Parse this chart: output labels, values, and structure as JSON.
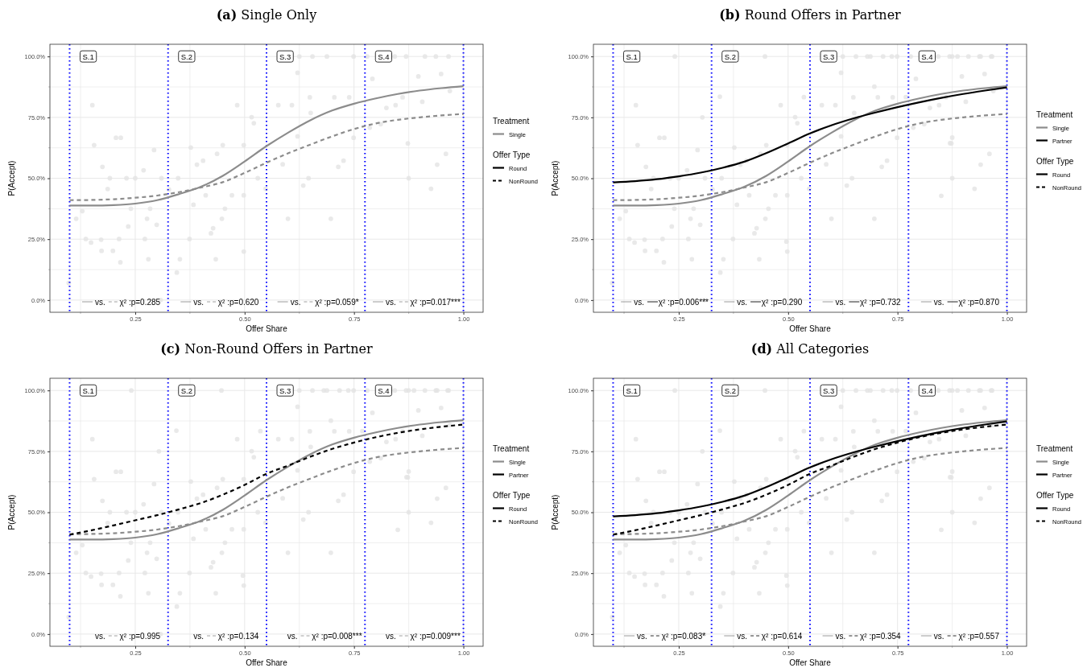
{
  "chart_data": [
    {
      "type": "line",
      "title": "(a) Single Only",
      "xlabel": "Offer Share",
      "ylabel": "P(Accept)",
      "legend_title": "Treatment",
      "legend": "right",
      "grid": true,
      "xlim": [
        0.055,
        1.045
      ],
      "ylim": [
        -5,
        105
      ],
      "xticks": [
        {
          "value": 0.125,
          "label": null
        },
        {
          "value": 0.25,
          "label": "0.25"
        },
        {
          "value": 0.375,
          "label": null
        },
        {
          "value": 0.5,
          "label": "0.50"
        },
        {
          "value": 0.625,
          "label": null
        },
        {
          "value": 0.75,
          "label": "0.75"
        },
        {
          "value": 0.875,
          "label": null
        },
        {
          "value": 1,
          "label": "1.00"
        }
      ],
      "yticks": [
        {
          "value": 0,
          "label": "0.0%"
        },
        {
          "value": 12.5,
          "label": null
        },
        {
          "value": 25,
          "label": "25.0%"
        },
        {
          "value": 37.5,
          "label": null
        },
        {
          "value": 50,
          "label": "50.0%"
        },
        {
          "value": 62.5,
          "label": null
        },
        {
          "value": 75,
          "label": "75.0%"
        },
        {
          "value": 87.5,
          "label": null
        },
        {
          "value": 100,
          "label": "100.0%"
        }
      ],
      "x": [
        0.1,
        0.15,
        0.2,
        0.25,
        0.3,
        0.35,
        0.4,
        0.45,
        0.5,
        0.55,
        0.6,
        0.65,
        0.7,
        0.75,
        0.8,
        0.85,
        0.9,
        0.95,
        1.0
      ],
      "series": [
        {
          "type": "scatter",
          "marker": "circle",
          "color": "#e3e3e3",
          "x": [
            0.152,
            0.156,
            0.098,
            0.115,
            0.129,
            0.137,
            0.149,
            0.172,
            0.173,
            0.175,
            0.187,
            0.192,
            0.199,
            0.206,
            0.217,
            0.213,
            0.216,
            0.23,
            0.234,
            0.24,
            0.25,
            0.269,
            0.272,
            0.277,
            0.28,
            0.284,
            0.293,
            0.299,
            0.31,
            0.308,
            0.327,
            0.345,
            0.348,
            0.352,
            0.374,
            0.377,
            0.383,
            0.391,
            0.405,
            0.411,
            0.423,
            0.428,
            0.434,
            0.437,
            0.448,
            0.45,
            0.455,
            0.471,
            0.483,
            0.498,
            0.498,
            0.498,
            0.516,
            0.521,
            0.53,
            0.548,
            0.577,
            0.587,
            0.599,
            0.608,
            0.621,
            0.621,
            0.625,
            0.634,
            0.646,
            0.649,
            0.651,
            0.655,
            0.688,
            0.697,
            0.705,
            0.714,
            0.726,
            0.739,
            0.749,
            0.749,
            0.78,
            0.786,
            0.792,
            0.811,
            0.824,
            0.843,
            0.845,
            0.861,
            0.869,
            0.873,
            0.875,
            0.897,
            0.906,
            0.912,
            0.926,
            0.937,
            0.94,
            0.949,
            0.96,
            0.966,
            0.969
          ],
          "values": [
            80.0,
            63.6,
            7.0,
            33.4,
            36.5,
            25.1,
            23.6,
            24.8,
            20.2,
            54.7,
            45.6,
            50,
            20.2,
            66.6,
            66.6,
            25.1,
            15.5,
            50,
            30.2,
            37.5,
            50,
            53.3,
            25.1,
            33.4,
            16.8,
            37.5,
            61.6,
            30.9,
            50,
            0,
            45.4,
            11.3,
            50,
            16.8,
            25.1,
            62.6,
            39.1,
            55.6,
            57.2,
            43.0,
            27.4,
            29.5,
            16.8,
            60.0,
            33.4,
            63.6,
            37.5,
            43.0,
            80.0,
            63.6,
            43.0,
            19.9,
            75.1,
            72.6,
            50,
            45.7,
            80,
            55.7,
            33.4,
            80,
            67.2,
            93.3,
            100,
            47.0,
            50,
            83.2,
            76.8,
            100,
            100,
            33.4,
            83.2,
            54.7,
            57.2,
            83.2,
            66.6,
            100,
            100,
            70.8,
            90.8,
            72.2,
            78.9,
            100,
            80,
            83.2,
            100,
            64.3,
            50,
            91.8,
            81.4,
            100,
            45.7,
            100,
            55.6,
            92.8,
            60.0,
            100,
            85.8
          ]
        },
        {
          "name": "Single",
          "color": "#8c8c8c",
          "line_style": "solid",
          "values": [
            38.8,
            38.8,
            39.0,
            39.6,
            41.0,
            43.5,
            46.5,
            51.0,
            56.9,
            63.2,
            68.8,
            73.8,
            77.8,
            80.6,
            82.8,
            84.6,
            86.0,
            87.0,
            87.8
          ]
        },
        {
          "color": "#8c8c8c",
          "line_style": "dashed",
          "values": [
            41.0,
            41.1,
            41.4,
            42.0,
            42.9,
            44.3,
            46.2,
            48.4,
            52.2,
            56.4,
            60.3,
            63.8,
            67.2,
            70.2,
            72.5,
            74.0,
            75.0,
            75.8,
            76.4
          ]
        }
      ],
      "ref_lines": [
        {
          "axis": "x",
          "value": 0.1,
          "label": "S.1",
          "color": "#0000ff",
          "line_style": "dotted"
        },
        {
          "axis": "x",
          "value": 0.325,
          "label": "S.2",
          "color": "#0000ff",
          "line_style": "dotted"
        },
        {
          "axis": "x",
          "value": 0.55,
          "label": "S.3",
          "color": "#0000ff",
          "line_style": "dotted"
        },
        {
          "axis": "x",
          "value": 0.775,
          "label": "S.4",
          "color": "#0000ff",
          "line_style": "dotted"
        },
        {
          "axis": "x",
          "value": 1.0,
          "color": "#0000ff",
          "line_style": "dotted"
        }
      ],
      "annotations": [
        "vs. χ² :p=0.285",
        "vs. χ² :p=0.620",
        "vs. χ² :p=0.059*",
        "vs. χ² :p=0.017***",
        "Offer Type",
        "Round",
        "NonRound"
      ]
    },
    {
      "type": "line",
      "title": "(b) Round Offers in Partner",
      "xlabel": "Offer Share",
      "ylabel": "P(Accept)",
      "legend_title": "Treatment",
      "legend": "right",
      "grid": true,
      "xlim": [
        0.055,
        1.045
      ],
      "ylim": [
        -5,
        105
      ],
      "xticks": [
        {
          "value": 0.125,
          "label": null
        },
        {
          "value": 0.25,
          "label": "0.25"
        },
        {
          "value": 0.375,
          "label": null
        },
        {
          "value": 0.5,
          "label": "0.50"
        },
        {
          "value": 0.625,
          "label": null
        },
        {
          "value": 0.75,
          "label": "0.75"
        },
        {
          "value": 0.875,
          "label": null
        },
        {
          "value": 1,
          "label": "1.00"
        }
      ],
      "yticks": [
        {
          "value": 0,
          "label": "0.0%"
        },
        {
          "value": 12.5,
          "label": null
        },
        {
          "value": 25,
          "label": "25.0%"
        },
        {
          "value": 37.5,
          "label": null
        },
        {
          "value": 50,
          "label": "50.0%"
        },
        {
          "value": 62.5,
          "label": null
        },
        {
          "value": 75,
          "label": "75.0%"
        },
        {
          "value": 87.5,
          "label": null
        },
        {
          "value": 100,
          "label": "100.0%"
        }
      ],
      "x": [
        0.1,
        0.15,
        0.2,
        0.25,
        0.3,
        0.35,
        0.4,
        0.45,
        0.5,
        0.55,
        0.6,
        0.65,
        0.7,
        0.75,
        0.8,
        0.85,
        0.9,
        0.95,
        1.0
      ],
      "series": [
        {
          "type": "scatter",
          "marker": "circle",
          "color": "#e3e3e3",
          "x": [
            0.152,
            0.156,
            0.098,
            0.115,
            0.129,
            0.137,
            0.149,
            0.172,
            0.173,
            0.175,
            0.187,
            0.192,
            0.199,
            0.206,
            0.217,
            0.213,
            0.216,
            0.23,
            0.234,
            0.24,
            0.25,
            0.269,
            0.272,
            0.277,
            0.28,
            0.284,
            0.293,
            0.299,
            0.31,
            0.308,
            0.327,
            0.345,
            0.348,
            0.352,
            0.374,
            0.377,
            0.383,
            0.391,
            0.405,
            0.411,
            0.423,
            0.428,
            0.434,
            0.437,
            0.448,
            0.45,
            0.455,
            0.471,
            0.483,
            0.498,
            0.498,
            0.498,
            0.516,
            0.521,
            0.53,
            0.548,
            0.577,
            0.587,
            0.599,
            0.608,
            0.621,
            0.621,
            0.625,
            0.634,
            0.646,
            0.649,
            0.651,
            0.655,
            0.688,
            0.697,
            0.705,
            0.714,
            0.726,
            0.739,
            0.749,
            0.749,
            0.78,
            0.786,
            0.792,
            0.811,
            0.824,
            0.843,
            0.845,
            0.861,
            0.869,
            0.873,
            0.875,
            0.897,
            0.906,
            0.912,
            0.926,
            0.937,
            0.94,
            0.949,
            0.96,
            0.966,
            0.969,
            0.241,
            0.447,
            0.344,
            0.304,
            0.536,
            0.875,
            0.887,
            0.94,
            0.964,
            0.875,
            0.87,
            0.85,
            0.697,
            0.769,
            0.681,
            0.717,
            0.737,
            0.496
          ],
          "values": [
            80.0,
            63.6,
            7.0,
            33.4,
            36.5,
            25.1,
            23.6,
            24.8,
            20.2,
            54.7,
            45.6,
            50,
            20.2,
            66.6,
            66.6,
            25.1,
            15.5,
            50,
            30.2,
            37.5,
            50,
            53.3,
            25.1,
            33.4,
            16.8,
            37.5,
            61.6,
            30.9,
            50,
            0,
            45.4,
            11.3,
            50,
            16.8,
            25.1,
            62.6,
            39.1,
            55.6,
            57.2,
            43.0,
            27.4,
            29.5,
            16.8,
            60.0,
            33.4,
            63.6,
            37.5,
            43.0,
            80.0,
            63.6,
            43.0,
            19.9,
            75.1,
            72.6,
            50,
            45.7,
            80,
            55.7,
            33.4,
            80,
            67.2,
            93.3,
            100,
            47.0,
            50,
            83.2,
            76.8,
            100,
            100,
            33.4,
            83.2,
            54.7,
            57.2,
            83.2,
            66.6,
            100,
            100,
            70.8,
            90.8,
            72.2,
            78.9,
            100,
            80,
            83.2,
            100,
            64.3,
            50,
            91.8,
            81.4,
            100,
            45.7,
            100,
            55.6,
            92.8,
            60.0,
            100,
            85.8,
            100,
            100,
            83.5,
            75.0,
            83.3,
            100,
            100,
            100,
            100,
            66.7,
            64.4,
            42.8,
            87.6,
            83.3,
            100,
            100,
            100,
            24.0
          ]
        },
        {
          "name": "Single",
          "color": "#8c8c8c",
          "line_style": "solid",
          "values": [
            38.8,
            38.8,
            39.0,
            39.6,
            41.0,
            43.5,
            46.5,
            51.0,
            56.9,
            63.2,
            68.8,
            73.8,
            77.8,
            80.6,
            82.8,
            84.6,
            86.0,
            87.0,
            87.8
          ]
        },
        {
          "color": "#8c8c8c",
          "line_style": "dashed",
          "values": [
            41.0,
            41.1,
            41.4,
            42.0,
            42.9,
            44.3,
            46.2,
            48.4,
            52.2,
            56.4,
            60.3,
            63.8,
            67.2,
            70.2,
            72.5,
            74.0,
            75.0,
            75.8,
            76.4
          ]
        },
        {
          "name": "Partner",
          "color": "#000000",
          "line_style": "solid",
          "values": [
            48.3,
            48.8,
            49.6,
            50.8,
            52.3,
            54.3,
            56.8,
            60.3,
            64.3,
            68.4,
            71.8,
            74.6,
            77.0,
            79.2,
            81.2,
            83.0,
            84.6,
            86.0,
            87.3
          ]
        }
      ],
      "ref_lines": [
        {
          "axis": "x",
          "value": 0.1,
          "label": "S.1",
          "color": "#0000ff",
          "line_style": "dotted"
        },
        {
          "axis": "x",
          "value": 0.325,
          "label": "S.2",
          "color": "#0000ff",
          "line_style": "dotted"
        },
        {
          "axis": "x",
          "value": 0.55,
          "label": "S.3",
          "color": "#0000ff",
          "line_style": "dotted"
        },
        {
          "axis": "x",
          "value": 0.775,
          "label": "S.4",
          "color": "#0000ff",
          "line_style": "dotted"
        },
        {
          "axis": "x",
          "value": 1.0,
          "color": "#0000ff",
          "line_style": "dotted"
        }
      ],
      "annotations": [
        "vs. χ² :p=0.006***",
        "vs. χ² :p=0.290",
        "vs. χ² :p=0.732",
        "vs. χ² :p=0.870",
        "Offer Type",
        "Round",
        "NonRound"
      ]
    },
    {
      "type": "line",
      "title": "(c) Non-Round Offers in Partner",
      "xlabel": "Offer Share",
      "ylabel": "P(Accept)",
      "legend_title": "Treatment",
      "legend": "right",
      "grid": true,
      "xlim": [
        0.055,
        1.045
      ],
      "ylim": [
        -5,
        105
      ],
      "xticks": [
        {
          "value": 0.125,
          "label": null
        },
        {
          "value": 0.25,
          "label": "0.25"
        },
        {
          "value": 0.375,
          "label": null
        },
        {
          "value": 0.5,
          "label": "0.50"
        },
        {
          "value": 0.625,
          "label": null
        },
        {
          "value": 0.75,
          "label": "0.75"
        },
        {
          "value": 0.875,
          "label": null
        },
        {
          "value": 1,
          "label": "1.00"
        }
      ],
      "yticks": [
        {
          "value": 0,
          "label": "0.0%"
        },
        {
          "value": 12.5,
          "label": null
        },
        {
          "value": 25,
          "label": "25.0%"
        },
        {
          "value": 37.5,
          "label": null
        },
        {
          "value": 50,
          "label": "50.0%"
        },
        {
          "value": 62.5,
          "label": null
        },
        {
          "value": 75,
          "label": "75.0%"
        },
        {
          "value": 87.5,
          "label": null
        },
        {
          "value": 100,
          "label": "100.0%"
        }
      ],
      "x": [
        0.1,
        0.15,
        0.2,
        0.25,
        0.3,
        0.35,
        0.4,
        0.45,
        0.5,
        0.55,
        0.6,
        0.65,
        0.7,
        0.75,
        0.8,
        0.85,
        0.9,
        0.95,
        1.0
      ],
      "series": [
        {
          "type": "scatter",
          "marker": "circle",
          "color": "#e3e3e3",
          "x": [
            0.152,
            0.156,
            0.098,
            0.115,
            0.129,
            0.137,
            0.149,
            0.172,
            0.173,
            0.175,
            0.187,
            0.192,
            0.199,
            0.206,
            0.217,
            0.213,
            0.216,
            0.23,
            0.234,
            0.24,
            0.25,
            0.269,
            0.272,
            0.277,
            0.28,
            0.284,
            0.293,
            0.299,
            0.31,
            0.308,
            0.327,
            0.345,
            0.348,
            0.352,
            0.374,
            0.377,
            0.383,
            0.391,
            0.405,
            0.411,
            0.423,
            0.428,
            0.434,
            0.437,
            0.448,
            0.45,
            0.455,
            0.471,
            0.483,
            0.498,
            0.498,
            0.498,
            0.516,
            0.521,
            0.53,
            0.548,
            0.577,
            0.587,
            0.599,
            0.608,
            0.621,
            0.621,
            0.625,
            0.634,
            0.646,
            0.649,
            0.651,
            0.655,
            0.688,
            0.697,
            0.705,
            0.714,
            0.726,
            0.739,
            0.749,
            0.749,
            0.78,
            0.786,
            0.792,
            0.811,
            0.824,
            0.843,
            0.845,
            0.861,
            0.869,
            0.873,
            0.875,
            0.897,
            0.906,
            0.912,
            0.926,
            0.937,
            0.94,
            0.949,
            0.96,
            0.966,
            0.969,
            0.241,
            0.447,
            0.344,
            0.304,
            0.536,
            0.875,
            0.887,
            0.94,
            0.964,
            0.875,
            0.87,
            0.85,
            0.697,
            0.769,
            0.681,
            0.717,
            0.737,
            0.496
          ],
          "values": [
            80.0,
            63.6,
            7.0,
            33.4,
            36.5,
            25.1,
            23.6,
            24.8,
            20.2,
            54.7,
            45.6,
            50,
            20.2,
            66.6,
            66.6,
            25.1,
            15.5,
            50,
            30.2,
            37.5,
            50,
            53.3,
            25.1,
            33.4,
            16.8,
            37.5,
            61.6,
            30.9,
            50,
            0,
            45.4,
            11.3,
            50,
            16.8,
            25.1,
            62.6,
            39.1,
            55.6,
            57.2,
            43.0,
            27.4,
            29.5,
            16.8,
            60.0,
            33.4,
            63.6,
            37.5,
            43.0,
            80.0,
            63.6,
            43.0,
            19.9,
            75.1,
            72.6,
            50,
            45.7,
            80,
            55.7,
            33.4,
            80,
            67.2,
            93.3,
            100,
            47.0,
            50,
            83.2,
            76.8,
            100,
            100,
            33.4,
            83.2,
            54.7,
            57.2,
            83.2,
            66.6,
            100,
            100,
            70.8,
            90.8,
            72.2,
            78.9,
            100,
            80,
            83.2,
            100,
            64.3,
            50,
            91.8,
            81.4,
            100,
            45.7,
            100,
            55.6,
            92.8,
            60.0,
            100,
            85.8,
            100,
            100,
            83.5,
            75.0,
            83.3,
            100,
            100,
            100,
            100,
            66.7,
            64.4,
            42.8,
            87.6,
            83.3,
            100,
            100,
            100,
            24.0
          ]
        },
        {
          "name": "Single",
          "color": "#8c8c8c",
          "line_style": "solid",
          "values": [
            38.8,
            38.8,
            39.0,
            39.6,
            41.0,
            43.5,
            46.5,
            51.0,
            56.9,
            63.2,
            68.8,
            73.8,
            77.8,
            80.6,
            82.8,
            84.6,
            86.0,
            87.0,
            87.8
          ]
        },
        {
          "color": "#8c8c8c",
          "line_style": "dashed",
          "values": [
            41.0,
            41.1,
            41.4,
            42.0,
            42.9,
            44.3,
            46.2,
            48.4,
            52.2,
            56.4,
            60.3,
            63.8,
            67.2,
            70.2,
            72.5,
            74.0,
            75.0,
            75.8,
            76.4
          ]
        },
        {
          "name": "Partner",
          "color": "#000000",
          "line_style": "dashed",
          "values": [
            40.8,
            42.6,
            44.6,
            46.7,
            48.8,
            51.2,
            53.8,
            57.2,
            61.2,
            65.8,
            69.2,
            72.8,
            76.0,
            78.6,
            80.8,
            82.6,
            84.0,
            85.1,
            86.0
          ]
        }
      ],
      "ref_lines": [
        {
          "axis": "x",
          "value": 0.1,
          "label": "S.1",
          "color": "#0000ff",
          "line_style": "dotted"
        },
        {
          "axis": "x",
          "value": 0.325,
          "label": "S.2",
          "color": "#0000ff",
          "line_style": "dotted"
        },
        {
          "axis": "x",
          "value": 0.55,
          "label": "S.3",
          "color": "#0000ff",
          "line_style": "dotted"
        },
        {
          "axis": "x",
          "value": 0.775,
          "label": "S.4",
          "color": "#0000ff",
          "line_style": "dotted"
        },
        {
          "axis": "x",
          "value": 1.0,
          "color": "#0000ff",
          "line_style": "dotted"
        }
      ],
      "annotations": [
        "vs. χ² :p=0.995",
        "vs. χ² :p=0.134",
        "vs. χ² :p=0.008***",
        "vs. χ² :p=0.009***",
        "Offer Type",
        "Round",
        "NonRound"
      ]
    },
    {
      "type": "line",
      "title": "(d) All Categories",
      "xlabel": "Offer Share",
      "ylabel": "P(Accept)",
      "legend_title": "Treatment",
      "legend": "right",
      "grid": true,
      "xlim": [
        0.055,
        1.045
      ],
      "ylim": [
        -5,
        105
      ],
      "xticks": [
        {
          "value": 0.125,
          "label": null
        },
        {
          "value": 0.25,
          "label": "0.25"
        },
        {
          "value": 0.375,
          "label": null
        },
        {
          "value": 0.5,
          "label": "0.50"
        },
        {
          "value": 0.625,
          "label": null
        },
        {
          "value": 0.75,
          "label": "0.75"
        },
        {
          "value": 0.875,
          "label": null
        },
        {
          "value": 1,
          "label": "1.00"
        }
      ],
      "yticks": [
        {
          "value": 0,
          "label": "0.0%"
        },
        {
          "value": 12.5,
          "label": null
        },
        {
          "value": 25,
          "label": "25.0%"
        },
        {
          "value": 37.5,
          "label": null
        },
        {
          "value": 50,
          "label": "50.0%"
        },
        {
          "value": 62.5,
          "label": null
        },
        {
          "value": 75,
          "label": "75.0%"
        },
        {
          "value": 87.5,
          "label": null
        },
        {
          "value": 100,
          "label": "100.0%"
        }
      ],
      "x": [
        0.1,
        0.15,
        0.2,
        0.25,
        0.3,
        0.35,
        0.4,
        0.45,
        0.5,
        0.55,
        0.6,
        0.65,
        0.7,
        0.75,
        0.8,
        0.85,
        0.9,
        0.95,
        1.0
      ],
      "series": [
        {
          "type": "scatter",
          "marker": "circle",
          "color": "#e3e3e3",
          "x": [
            0.152,
            0.156,
            0.098,
            0.115,
            0.129,
            0.137,
            0.149,
            0.172,
            0.173,
            0.175,
            0.187,
            0.192,
            0.199,
            0.206,
            0.217,
            0.213,
            0.216,
            0.23,
            0.234,
            0.24,
            0.25,
            0.269,
            0.272,
            0.277,
            0.28,
            0.284,
            0.293,
            0.299,
            0.31,
            0.308,
            0.327,
            0.345,
            0.348,
            0.352,
            0.374,
            0.377,
            0.383,
            0.391,
            0.405,
            0.411,
            0.423,
            0.428,
            0.434,
            0.437,
            0.448,
            0.45,
            0.455,
            0.471,
            0.483,
            0.498,
            0.498,
            0.498,
            0.516,
            0.521,
            0.53,
            0.548,
            0.577,
            0.587,
            0.599,
            0.608,
            0.621,
            0.621,
            0.625,
            0.634,
            0.646,
            0.649,
            0.651,
            0.655,
            0.688,
            0.697,
            0.705,
            0.714,
            0.726,
            0.739,
            0.749,
            0.749,
            0.78,
            0.786,
            0.792,
            0.811,
            0.824,
            0.843,
            0.845,
            0.861,
            0.869,
            0.873,
            0.875,
            0.897,
            0.906,
            0.912,
            0.926,
            0.937,
            0.94,
            0.949,
            0.96,
            0.966,
            0.969,
            0.241,
            0.447,
            0.344,
            0.304,
            0.536,
            0.875,
            0.887,
            0.94,
            0.964,
            0.875,
            0.87,
            0.85,
            0.697,
            0.769,
            0.681,
            0.717,
            0.737,
            0.496
          ],
          "values": [
            80.0,
            63.6,
            7.0,
            33.4,
            36.5,
            25.1,
            23.6,
            24.8,
            20.2,
            54.7,
            45.6,
            50,
            20.2,
            66.6,
            66.6,
            25.1,
            15.5,
            50,
            30.2,
            37.5,
            50,
            53.3,
            25.1,
            33.4,
            16.8,
            37.5,
            61.6,
            30.9,
            50,
            0,
            45.4,
            11.3,
            50,
            16.8,
            25.1,
            62.6,
            39.1,
            55.6,
            57.2,
            43.0,
            27.4,
            29.5,
            16.8,
            60.0,
            33.4,
            63.6,
            37.5,
            43.0,
            80.0,
            63.6,
            43.0,
            19.9,
            75.1,
            72.6,
            50,
            45.7,
            80,
            55.7,
            33.4,
            80,
            67.2,
            93.3,
            100,
            47.0,
            50,
            83.2,
            76.8,
            100,
            100,
            33.4,
            83.2,
            54.7,
            57.2,
            83.2,
            66.6,
            100,
            100,
            70.8,
            90.8,
            72.2,
            78.9,
            100,
            80,
            83.2,
            100,
            64.3,
            50,
            91.8,
            81.4,
            100,
            45.7,
            100,
            55.6,
            92.8,
            60.0,
            100,
            85.8,
            100,
            100,
            83.5,
            75.0,
            83.3,
            100,
            100,
            100,
            100,
            66.7,
            64.4,
            42.8,
            87.6,
            83.3,
            100,
            100,
            100,
            24.0
          ]
        },
        {
          "name": "Single",
          "color": "#8c8c8c",
          "line_style": "solid",
          "values": [
            38.8,
            38.8,
            39.0,
            39.6,
            41.0,
            43.5,
            46.5,
            51.0,
            56.9,
            63.2,
            68.8,
            73.8,
            77.8,
            80.6,
            82.8,
            84.6,
            86.0,
            87.0,
            87.8
          ]
        },
        {
          "color": "#8c8c8c",
          "line_style": "dashed",
          "values": [
            41.0,
            41.1,
            41.4,
            42.0,
            42.9,
            44.3,
            46.2,
            48.4,
            52.2,
            56.4,
            60.3,
            63.8,
            67.2,
            70.2,
            72.5,
            74.0,
            75.0,
            75.8,
            76.4
          ]
        },
        {
          "name": "Partner",
          "color": "#000000",
          "line_style": "solid",
          "values": [
            48.3,
            48.8,
            49.6,
            50.8,
            52.3,
            54.3,
            56.8,
            60.3,
            64.3,
            68.4,
            71.8,
            74.6,
            77.0,
            79.2,
            81.2,
            83.0,
            84.6,
            86.0,
            87.3
          ]
        },
        {
          "color": "#000000",
          "line_style": "dashed",
          "values": [
            40.8,
            42.6,
            44.6,
            46.7,
            48.8,
            51.2,
            53.8,
            57.2,
            61.2,
            65.8,
            69.2,
            72.8,
            76.0,
            78.6,
            80.8,
            82.6,
            84.0,
            85.1,
            86.0
          ]
        }
      ],
      "ref_lines": [
        {
          "axis": "x",
          "value": 0.1,
          "label": "S.1",
          "color": "#0000ff",
          "line_style": "dotted"
        },
        {
          "axis": "x",
          "value": 0.325,
          "label": "S.2",
          "color": "#0000ff",
          "line_style": "dotted"
        },
        {
          "axis": "x",
          "value": 0.55,
          "label": "S.3",
          "color": "#0000ff",
          "line_style": "dotted"
        },
        {
          "axis": "x",
          "value": 0.775,
          "label": "S.4",
          "color": "#0000ff",
          "line_style": "dotted"
        },
        {
          "axis": "x",
          "value": 1.0,
          "color": "#0000ff",
          "line_style": "dotted"
        }
      ],
      "annotations": [
        "vs. χ² :p=0.083*",
        "vs. χ² :p=0.614",
        "vs. χ² :p=0.354",
        "vs. χ² :p=0.557",
        "Offer Type",
        "Round",
        "NonRound"
      ]
    }
  ]
}
